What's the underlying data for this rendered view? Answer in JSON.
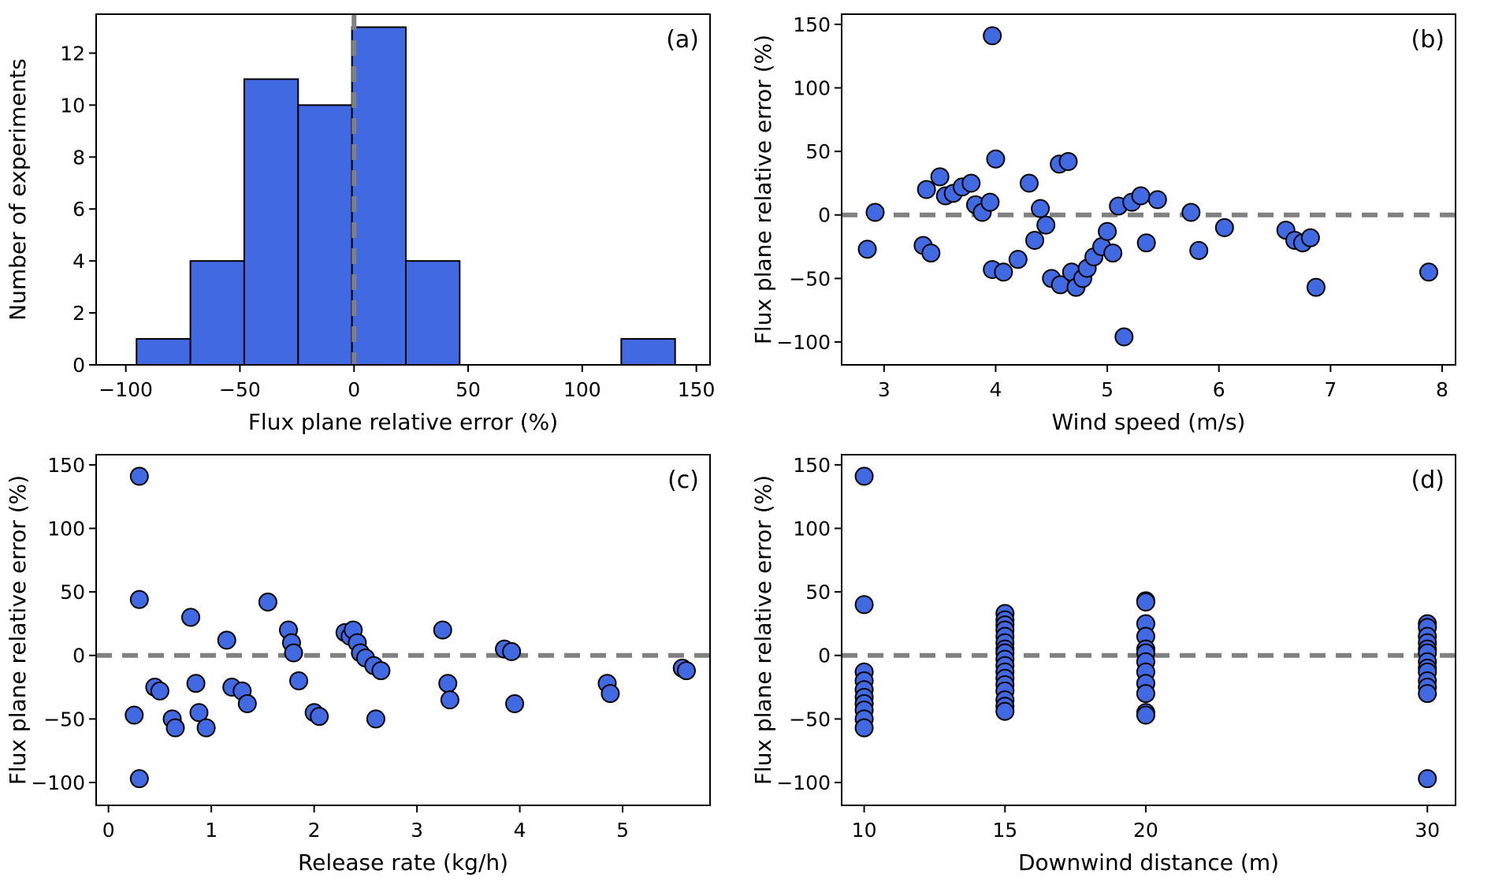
{
  "figure": {
    "background": "#ffffff",
    "marker_fill": "#4169e1",
    "marker_edge": "#000000",
    "bar_fill": "#4169e1",
    "bar_edge": "#000000",
    "zero_line_color": "#808080",
    "axis_color": "#000000"
  },
  "chart_data": [
    {
      "type": "bar",
      "panel_label": "(a)",
      "xlabel": "Flux plane relative error (%)",
      "ylabel": "Number of experiments",
      "xlim": [
        -113,
        156
      ],
      "ylim": [
        0,
        13.5
      ],
      "xticks": [
        -100,
        -50,
        0,
        50,
        100,
        150
      ],
      "yticks": [
        0,
        2,
        4,
        6,
        8,
        10,
        12
      ],
      "zero_line": {
        "orientation": "vertical",
        "value": 0
      },
      "bins": {
        "edges": [
          -95.3,
          -71.7,
          -48.1,
          -24.5,
          -0.9,
          22.7,
          46.3,
          69.9,
          93.5,
          117.1,
          140.7
        ],
        "counts": [
          1,
          4,
          11,
          10,
          13,
          4,
          0,
          0,
          0,
          1
        ]
      },
      "grid": false,
      "legend": null
    },
    {
      "type": "scatter",
      "panel_label": "(b)",
      "xlabel": "Wind speed (m/s)",
      "ylabel": "Flux plane relative error (%)",
      "xlim": [
        2.62,
        8.12
      ],
      "ylim": [
        -118,
        158
      ],
      "xticks": [
        3,
        4,
        5,
        6,
        7,
        8
      ],
      "yticks": [
        -100,
        -50,
        0,
        50,
        100,
        150
      ],
      "zero_line": {
        "orientation": "horizontal",
        "value": 0
      },
      "points": [
        [
          2.85,
          -27
        ],
        [
          2.92,
          2
        ],
        [
          3.35,
          -24
        ],
        [
          3.38,
          20
        ],
        [
          3.42,
          -30
        ],
        [
          3.5,
          30
        ],
        [
          3.55,
          15
        ],
        [
          3.62,
          17
        ],
        [
          3.7,
          22
        ],
        [
          3.78,
          25
        ],
        [
          3.82,
          8
        ],
        [
          3.88,
          2
        ],
        [
          3.95,
          10
        ],
        [
          3.97,
          141
        ],
        [
          4.0,
          44
        ],
        [
          3.97,
          -43
        ],
        [
          4.07,
          -45
        ],
        [
          4.2,
          -35
        ],
        [
          4.3,
          25
        ],
        [
          4.35,
          -20
        ],
        [
          4.4,
          5
        ],
        [
          4.45,
          -8
        ],
        [
          4.5,
          -50
        ],
        [
          4.57,
          40
        ],
        [
          4.65,
          42
        ],
        [
          4.58,
          -55
        ],
        [
          4.68,
          -45
        ],
        [
          4.72,
          -57
        ],
        [
          4.78,
          -50
        ],
        [
          4.82,
          -42
        ],
        [
          4.88,
          -33
        ],
        [
          4.95,
          -25
        ],
        [
          5.0,
          -13
        ],
        [
          5.05,
          -30
        ],
        [
          5.1,
          7
        ],
        [
          5.15,
          -96
        ],
        [
          5.22,
          10
        ],
        [
          5.3,
          15
        ],
        [
          5.35,
          -22
        ],
        [
          5.45,
          12
        ],
        [
          5.75,
          2
        ],
        [
          5.82,
          -28
        ],
        [
          6.05,
          -10
        ],
        [
          6.6,
          -12
        ],
        [
          6.68,
          -20
        ],
        [
          6.75,
          -22
        ],
        [
          6.82,
          -18
        ],
        [
          6.87,
          -57
        ],
        [
          7.88,
          -45
        ]
      ],
      "grid": false,
      "legend": null
    },
    {
      "type": "scatter",
      "panel_label": "(c)",
      "xlabel": "Release rate (kg/h)",
      "ylabel": "Flux plane relative error (%)",
      "xlim": [
        -0.12,
        5.85
      ],
      "ylim": [
        -118,
        158
      ],
      "xticks": [
        0,
        1,
        2,
        3,
        4,
        5
      ],
      "yticks": [
        -100,
        -50,
        0,
        50,
        100,
        150
      ],
      "zero_line": {
        "orientation": "horizontal",
        "value": 0
      },
      "points": [
        [
          0.3,
          141
        ],
        [
          0.3,
          44
        ],
        [
          0.25,
          -47
        ],
        [
          0.3,
          -97
        ],
        [
          0.45,
          -25
        ],
        [
          0.5,
          -28
        ],
        [
          0.62,
          -50
        ],
        [
          0.65,
          -57
        ],
        [
          0.8,
          30
        ],
        [
          0.85,
          -22
        ],
        [
          0.88,
          -45
        ],
        [
          0.95,
          -57
        ],
        [
          1.15,
          12
        ],
        [
          1.2,
          -25
        ],
        [
          1.3,
          -28
        ],
        [
          1.35,
          -38
        ],
        [
          1.55,
          42
        ],
        [
          1.75,
          20
        ],
        [
          1.78,
          10
        ],
        [
          1.8,
          2
        ],
        [
          1.85,
          -20
        ],
        [
          2.0,
          -45
        ],
        [
          2.05,
          -48
        ],
        [
          2.3,
          18
        ],
        [
          2.35,
          15
        ],
        [
          2.38,
          20
        ],
        [
          2.42,
          10
        ],
        [
          2.45,
          2
        ],
        [
          2.5,
          -2
        ],
        [
          2.58,
          -8
        ],
        [
          2.65,
          -12
        ],
        [
          2.6,
          -50
        ],
        [
          3.25,
          20
        ],
        [
          3.3,
          -22
        ],
        [
          3.32,
          -35
        ],
        [
          3.85,
          5
        ],
        [
          3.92,
          3
        ],
        [
          3.95,
          -38
        ],
        [
          4.85,
          -22
        ],
        [
          4.88,
          -30
        ],
        [
          5.58,
          -10
        ],
        [
          5.62,
          -12
        ]
      ],
      "grid": false,
      "legend": null
    },
    {
      "type": "scatter",
      "panel_label": "(d)",
      "xlabel": "Downwind distance (m)",
      "ylabel": "Flux plane relative error (%)",
      "xlim": [
        9.2,
        31.0
      ],
      "ylim": [
        -118,
        158
      ],
      "xticks": [
        10,
        15,
        20,
        30
      ],
      "yticks": [
        -100,
        -50,
        0,
        50,
        100,
        150
      ],
      "zero_line": {
        "orientation": "horizontal",
        "value": 0
      },
      "points": [
        [
          10,
          141
        ],
        [
          10,
          40
        ],
        [
          10,
          -13
        ],
        [
          10,
          -20
        ],
        [
          10,
          -27
        ],
        [
          10,
          -33
        ],
        [
          10,
          -38
        ],
        [
          10,
          -43
        ],
        [
          10,
          -50
        ],
        [
          10,
          -57
        ],
        [
          15,
          33
        ],
        [
          15,
          28
        ],
        [
          15,
          24
        ],
        [
          15,
          20
        ],
        [
          15,
          15
        ],
        [
          15,
          10
        ],
        [
          15,
          5
        ],
        [
          15,
          2
        ],
        [
          15,
          -3
        ],
        [
          15,
          -8
        ],
        [
          15,
          -13
        ],
        [
          15,
          -18
        ],
        [
          15,
          -23
        ],
        [
          15,
          -28
        ],
        [
          15,
          -35
        ],
        [
          15,
          -40
        ],
        [
          15,
          -44
        ],
        [
          20,
          43
        ],
        [
          20,
          42
        ],
        [
          20,
          25
        ],
        [
          20,
          15
        ],
        [
          20,
          5
        ],
        [
          20,
          2
        ],
        [
          20,
          -5
        ],
        [
          20,
          -13
        ],
        [
          20,
          -22
        ],
        [
          20,
          -30
        ],
        [
          20,
          -45
        ],
        [
          20,
          -47
        ],
        [
          30,
          25
        ],
        [
          30,
          22
        ],
        [
          30,
          15
        ],
        [
          30,
          10
        ],
        [
          30,
          5
        ],
        [
          30,
          2
        ],
        [
          30,
          -5
        ],
        [
          30,
          -10
        ],
        [
          30,
          -13
        ],
        [
          30,
          -20
        ],
        [
          30,
          -25
        ],
        [
          30,
          -30
        ],
        [
          30,
          -97
        ]
      ],
      "grid": false,
      "legend": null
    }
  ]
}
